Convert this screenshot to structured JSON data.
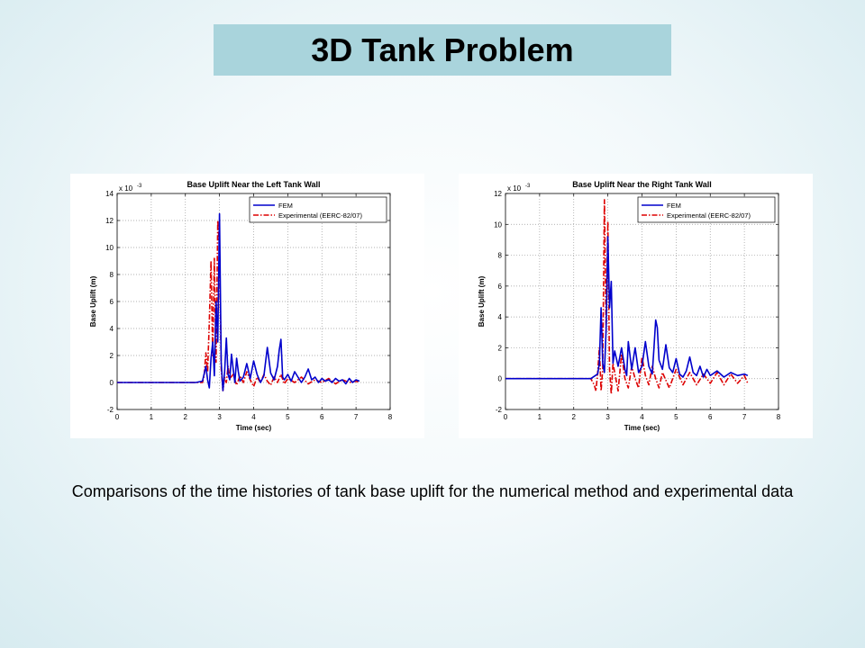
{
  "slide": {
    "title": "3D Tank Problem",
    "caption": "Comparisons of the time histories of tank base uplift for the numerical method and experimental data"
  },
  "colors": {
    "fem": "#0000cc",
    "experimental": "#dd0000",
    "title_box": "#a9d4dc"
  },
  "chart_data": [
    {
      "type": "line",
      "title": "Base Uplift Near the Left Tank Wall",
      "xlabel": "Time (sec)",
      "ylabel": "Base Uplift (m)",
      "exponent_label": "x 10",
      "exponent_power": "-3",
      "xlim": [
        0,
        8
      ],
      "ylim": [
        -2,
        14
      ],
      "xticks": [
        0,
        1,
        2,
        3,
        4,
        5,
        6,
        7,
        8
      ],
      "yticks": [
        -2,
        0,
        2,
        4,
        6,
        8,
        10,
        12,
        14
      ],
      "grid": true,
      "legend_position": "top-right",
      "series": [
        {
          "name": "FEM",
          "style": "solid",
          "x": [
            0,
            2.3,
            2.5,
            2.6,
            2.65,
            2.7,
            2.75,
            2.8,
            2.85,
            2.9,
            2.95,
            3.0,
            3.05,
            3.1,
            3.15,
            3.2,
            3.25,
            3.3,
            3.35,
            3.4,
            3.45,
            3.5,
            3.55,
            3.6,
            3.7,
            3.8,
            3.9,
            4.0,
            4.1,
            4.2,
            4.3,
            4.4,
            4.5,
            4.6,
            4.7,
            4.75,
            4.8,
            4.85,
            4.9,
            5.0,
            5.1,
            5.2,
            5.3,
            5.4,
            5.5,
            5.6,
            5.7,
            5.8,
            5.9,
            6.0,
            6.1,
            6.2,
            6.3,
            6.4,
            6.5,
            6.6,
            6.7,
            6.8,
            6.9,
            7.0,
            7.1
          ],
          "y": [
            0,
            0,
            0.1,
            1.2,
            0.2,
            -0.4,
            1.8,
            3.0,
            0.5,
            6.0,
            3.0,
            12.5,
            1.5,
            -0.6,
            0.8,
            3.3,
            0.6,
            0.2,
            2.1,
            1.0,
            0.0,
            1.8,
            0.8,
            0.1,
            0.4,
            1.4,
            0.3,
            1.6,
            0.6,
            0.0,
            0.5,
            2.6,
            0.7,
            0.2,
            1.2,
            2.4,
            3.2,
            0.4,
            0.2,
            0.6,
            0.1,
            0.8,
            0.4,
            0.0,
            0.4,
            1.0,
            0.2,
            0.4,
            0.0,
            0.3,
            0.1,
            0.2,
            0.0,
            0.3,
            0.1,
            0.2,
            -0.1,
            0.3,
            0.0,
            0.2,
            0.1
          ]
        },
        {
          "name": "Experimental (EERC-82/07)",
          "style": "dashdot",
          "x": [
            0,
            2.3,
            2.5,
            2.55,
            2.6,
            2.65,
            2.7,
            2.75,
            2.8,
            2.85,
            2.9,
            2.95,
            3.0,
            3.05,
            3.1,
            3.15,
            3.2,
            3.25,
            3.3,
            3.4,
            3.5,
            3.6,
            3.7,
            3.8,
            3.9,
            4.0,
            4.1,
            4.2,
            4.3,
            4.4,
            4.5,
            4.6,
            4.7,
            4.8,
            4.9,
            5.0,
            5.2,
            5.4,
            5.6,
            5.8,
            6.0,
            6.2,
            6.4,
            6.6,
            6.8,
            7.0,
            7.1
          ],
          "y": [
            0,
            0,
            0.0,
            0.5,
            2.2,
            0.8,
            4.5,
            9.0,
            2.0,
            9.2,
            1.5,
            12.0,
            10.0,
            1.0,
            -0.6,
            0.4,
            0.0,
            1.2,
            0.3,
            0.6,
            -0.2,
            0.5,
            0.0,
            0.8,
            0.2,
            -0.3,
            0.4,
            0.0,
            0.6,
            0.1,
            -0.2,
            0.4,
            0.0,
            0.6,
            -0.1,
            0.3,
            0.0,
            0.4,
            -0.1,
            0.2,
            0.0,
            0.3,
            -0.1,
            0.2,
            0.0,
            0.1,
            0.0
          ]
        }
      ]
    },
    {
      "type": "line",
      "title": "Base Uplift Near the Right Tank Wall",
      "xlabel": "Time (sec)",
      "ylabel": "Base Uplift (m)",
      "exponent_label": "x 10",
      "exponent_power": "-3",
      "xlim": [
        0,
        8
      ],
      "ylim": [
        -2,
        12
      ],
      "xticks": [
        0,
        1,
        2,
        3,
        4,
        5,
        6,
        7,
        8
      ],
      "yticks": [
        -2,
        0,
        2,
        4,
        6,
        8,
        10,
        12
      ],
      "grid": true,
      "legend_position": "top-right",
      "series": [
        {
          "name": "FEM",
          "style": "solid",
          "x": [
            0,
            2.5,
            2.7,
            2.75,
            2.8,
            2.85,
            2.9,
            2.95,
            3.0,
            3.05,
            3.1,
            3.15,
            3.2,
            3.3,
            3.4,
            3.5,
            3.55,
            3.6,
            3.7,
            3.8,
            3.9,
            4.0,
            4.1,
            4.2,
            4.3,
            4.35,
            4.4,
            4.45,
            4.5,
            4.6,
            4.7,
            4.8,
            4.9,
            5.0,
            5.1,
            5.2,
            5.3,
            5.4,
            5.5,
            5.6,
            5.7,
            5.8,
            5.9,
            6.0,
            6.2,
            6.4,
            6.6,
            6.8,
            7.0,
            7.1
          ],
          "y": [
            0,
            0,
            0.3,
            1.0,
            4.6,
            1.0,
            0.4,
            3.2,
            9.2,
            4.6,
            6.3,
            1.0,
            1.8,
            0.8,
            2.0,
            0.6,
            0.2,
            2.4,
            0.6,
            2.0,
            0.4,
            0.8,
            2.4,
            0.8,
            0.3,
            2.0,
            3.8,
            3.3,
            1.2,
            0.6,
            2.2,
            0.7,
            0.4,
            1.3,
            0.3,
            0.1,
            0.5,
            1.4,
            0.4,
            0.2,
            0.8,
            0.1,
            0.6,
            0.2,
            0.5,
            0.1,
            0.4,
            0.2,
            0.3,
            0.2
          ]
        },
        {
          "name": "Experimental (EERC-82/07)",
          "style": "dashdot",
          "x": [
            0,
            2.3,
            2.5,
            2.6,
            2.65,
            2.7,
            2.75,
            2.8,
            2.85,
            2.9,
            2.95,
            3.0,
            3.05,
            3.1,
            3.15,
            3.2,
            3.3,
            3.4,
            3.5,
            3.6,
            3.7,
            3.8,
            3.9,
            4.0,
            4.1,
            4.2,
            4.3,
            4.4,
            4.5,
            4.6,
            4.8,
            5.0,
            5.2,
            5.4,
            5.6,
            5.8,
            6.0,
            6.2,
            6.4,
            6.6,
            6.8,
            7.0,
            7.1
          ],
          "y": [
            0,
            0,
            0.0,
            -0.4,
            -0.8,
            0.4,
            2.0,
            -0.8,
            0.6,
            11.6,
            3.0,
            10.2,
            0.6,
            -1.0,
            1.0,
            0.4,
            -0.8,
            1.6,
            0.0,
            -0.6,
            0.8,
            0.0,
            -0.6,
            1.4,
            0.2,
            -0.4,
            0.8,
            0.0,
            -0.6,
            0.4,
            -0.6,
            0.6,
            -0.4,
            0.4,
            -0.4,
            0.3,
            -0.3,
            0.4,
            -0.4,
            0.3,
            -0.3,
            0.2,
            -0.3
          ]
        }
      ]
    }
  ]
}
